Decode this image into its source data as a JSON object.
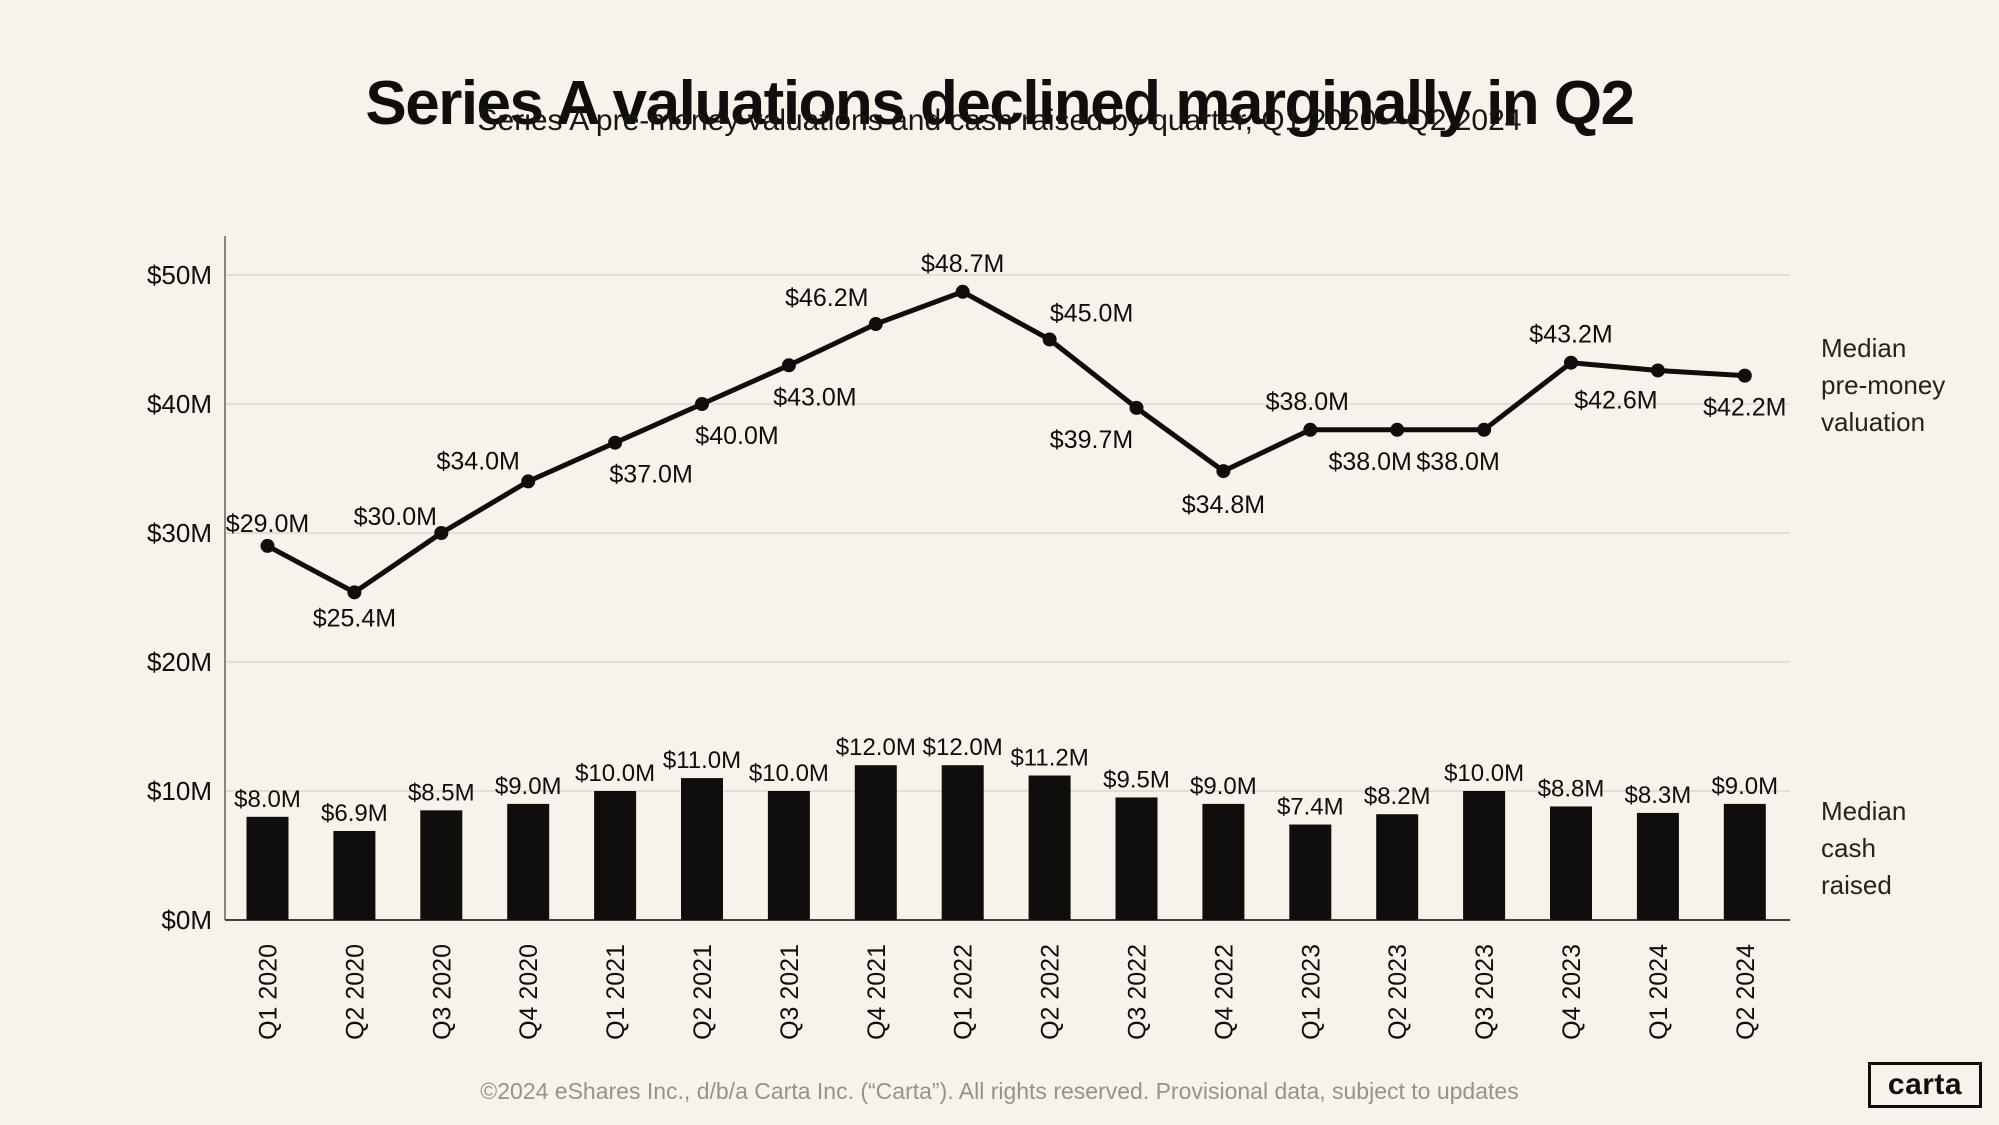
{
  "page": {
    "title": "Series A valuations declined marginally in Q2",
    "subtitle": "Series A pre-money valuations and cash raised by quarter, Q1 2020—Q2 2024",
    "footer": "©2024 eShares Inc., d/b/a Carta Inc. (“Carta”). All rights reserved. Provisional data, subject to updates",
    "logo_text": "carta"
  },
  "colors": {
    "background": "#f7f2ea",
    "ink": "#0f0e0c",
    "gridline": "#ddd8cf",
    "y_axis": "#8a867e",
    "x_axis": "#44403a",
    "footer_text": "#97928a",
    "legend_text": "#26231e"
  },
  "chart_data": {
    "type": "combo-bar-line",
    "categories": [
      "Q1 2020",
      "Q2 2020",
      "Q3 2020",
      "Q4 2020",
      "Q1 2021",
      "Q2 2021",
      "Q3 2021",
      "Q4 2021",
      "Q1 2022",
      "Q2 2022",
      "Q3 2022",
      "Q4 2022",
      "Q1 2023",
      "Q2 2023",
      "Q3 2023",
      "Q4 2023",
      "Q1 2024",
      "Q2 2024"
    ],
    "series": [
      {
        "name": "Median pre-money valuation",
        "type": "line",
        "unit": "$M",
        "values": [
          29.0,
          25.4,
          30.0,
          34.0,
          37.0,
          40.0,
          43.0,
          46.2,
          48.7,
          45.0,
          39.7,
          34.8,
          38.0,
          38.0,
          38.0,
          43.2,
          42.6,
          42.2
        ],
        "labels": [
          "$29.0M",
          "$25.4M",
          "$30.0M",
          "$34.0M",
          "$37.0M",
          "$40.0M",
          "$43.0M",
          "$46.2M",
          "$48.7M",
          "$45.0M",
          "$39.7M",
          "$34.8M",
          "$38.0M",
          "$38.0M",
          "$38.0M",
          "$43.2M",
          "$42.6M",
          "$42.2M"
        ],
        "label_offsets": [
          [
            0,
            -14
          ],
          [
            0,
            34
          ],
          [
            -46,
            -8
          ],
          [
            -50,
            -12
          ],
          [
            36,
            40
          ],
          [
            35,
            40
          ],
          [
            26,
            40
          ],
          [
            -49,
            -18
          ],
          [
            0,
            -20
          ],
          [
            42,
            -18
          ],
          [
            -45,
            40
          ],
          [
            0,
            42
          ],
          [
            -3,
            -20
          ],
          [
            -27,
            40
          ],
          [
            -26,
            40
          ],
          [
            0,
            -20
          ],
          [
            -42,
            38
          ],
          [
            0,
            40
          ]
        ]
      },
      {
        "name": "Median cash raised",
        "type": "bar",
        "unit": "$M",
        "values": [
          8.0,
          6.9,
          8.5,
          9.0,
          10.0,
          11.0,
          10.0,
          12.0,
          12.0,
          11.2,
          9.5,
          9.0,
          7.4,
          8.2,
          10.0,
          8.8,
          8.3,
          9.0
        ],
        "labels": [
          "$8.0M",
          "$6.9M",
          "$8.5M",
          "$9.0M",
          "$10.0M",
          "$11.0M",
          "$10.0M",
          "$12.0M",
          "$12.0M",
          "$11.2M",
          "$9.5M",
          "$9.0M",
          "$7.4M",
          "$8.2M",
          "$10.0M",
          "$8.8M",
          "$8.3M",
          "$9.0M"
        ]
      }
    ],
    "y_axis": {
      "tick_values": [
        0,
        10,
        20,
        30,
        40,
        50
      ],
      "tick_labels": [
        "$0M",
        "$10M",
        "$20M",
        "$30M",
        "$40M",
        "$50M"
      ],
      "ylim": [
        0,
        53
      ]
    },
    "grid": "horizontal",
    "legend_position": "right",
    "legend": {
      "line_series": [
        "Median",
        "pre-money",
        "valuation"
      ],
      "bar_series": [
        "Median",
        "cash",
        "raised"
      ]
    }
  }
}
